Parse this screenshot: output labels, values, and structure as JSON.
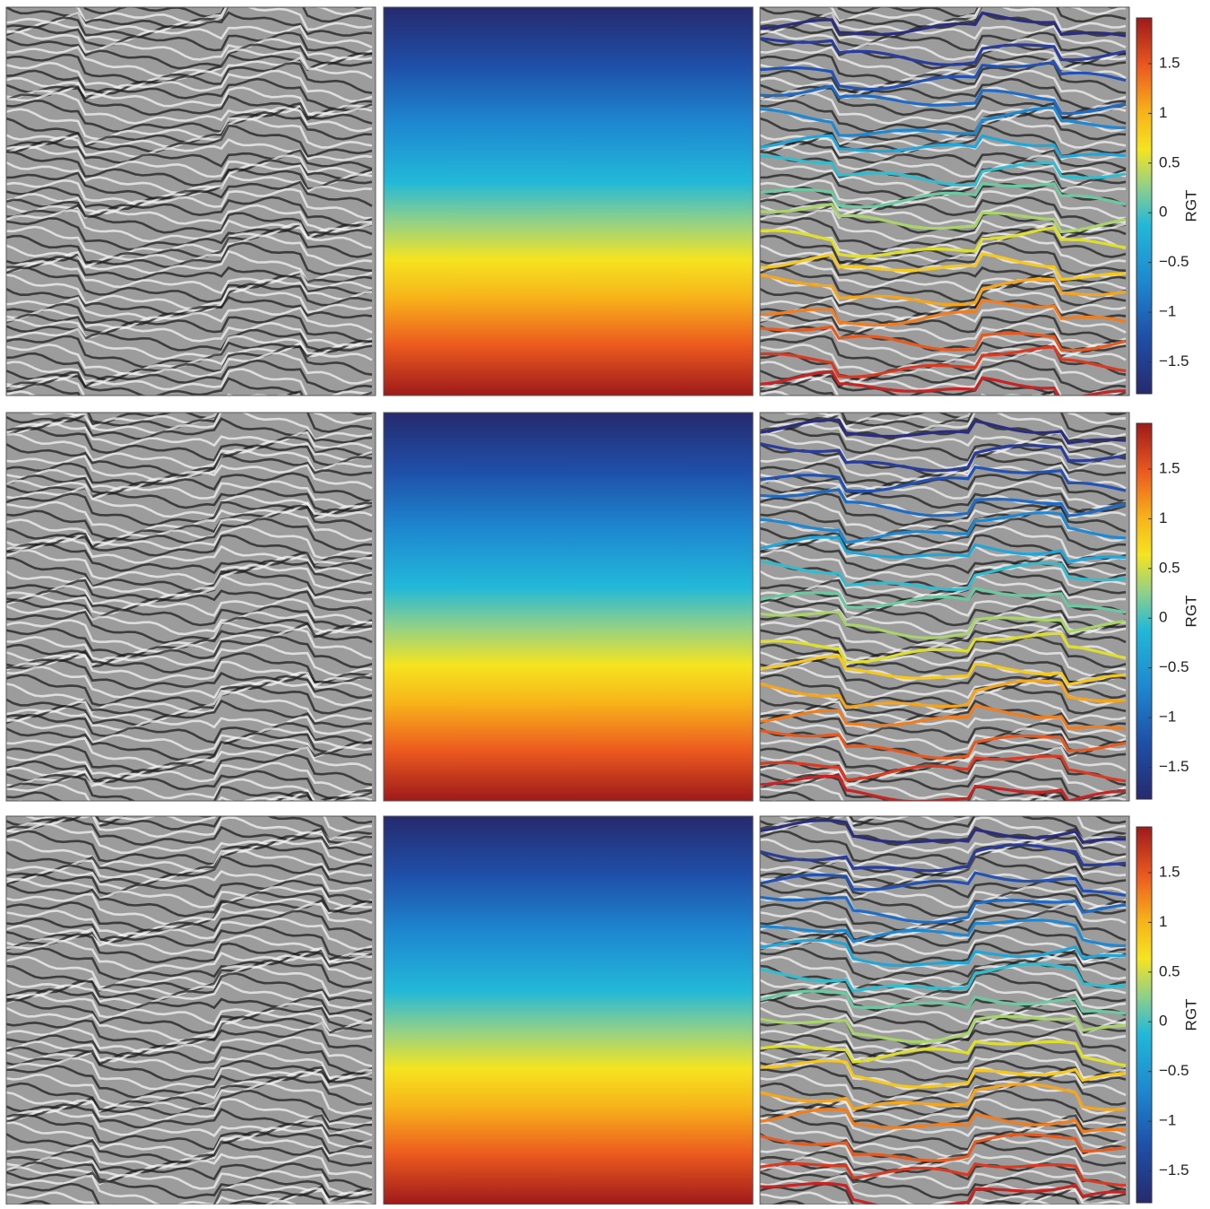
{
  "figure": {
    "colorbars": [
      {
        "label": "RGT",
        "lim": [
          -1.82,
          1.96
        ],
        "ticks": [
          {
            "value": -1.5,
            "label": "−1.5"
          },
          {
            "value": -1,
            "label": "−1"
          },
          {
            "value": -0.5,
            "label": "−0.5"
          },
          0,
          0.5,
          1,
          1.5
        ]
      },
      {
        "label": "RGT",
        "lim": [
          -1.82,
          1.96
        ],
        "ticks": [
          {
            "value": -1.5,
            "label": "−1.5"
          },
          {
            "value": -1,
            "label": "−1"
          },
          {
            "value": -0.5,
            "label": "−0.5"
          },
          0,
          0.5,
          1,
          1.5
        ]
      },
      {
        "label": "RGT",
        "lim": [
          -1.82,
          1.96
        ],
        "ticks": [
          {
            "value": -1.5,
            "label": "−1.5"
          },
          {
            "value": -1,
            "label": "−1"
          },
          {
            "value": -0.5,
            "label": "−0.5"
          },
          0,
          0.5,
          1,
          1.5
        ]
      }
    ]
  }
}
